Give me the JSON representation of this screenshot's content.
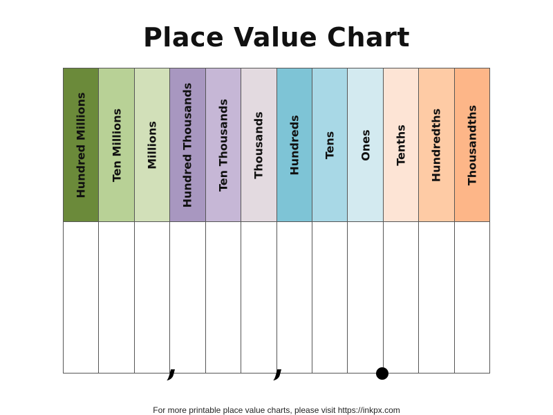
{
  "title": "Place Value Chart",
  "columns": [
    {
      "label": "Hundred Millions",
      "color": "#6b8a3a"
    },
    {
      "label": "Ten Millions",
      "color": "#b8d196"
    },
    {
      "label": "Millions",
      "color": "#d2e0b9"
    },
    {
      "label": "Hundred Thousands",
      "color": "#a897c0"
    },
    {
      "label": "Ten Thousands",
      "color": "#c6b7d6"
    },
    {
      "label": "Thousands",
      "color": "#e3dae0"
    },
    {
      "label": "Hundreds",
      "color": "#7ec4d6"
    },
    {
      "label": "Tens",
      "color": "#a8d8e6"
    },
    {
      "label": "Ones",
      "color": "#d3eaf0"
    },
    {
      "label": "Tenths",
      "color": "#fde4d5"
    },
    {
      "label": "Hundredths",
      "color": "#fecba5"
    },
    {
      "label": "Thousandths",
      "color": "#fdb688"
    }
  ],
  "separators": [
    "comma",
    "comma",
    "decimal-point"
  ],
  "footer": "For more printable place value charts, please visit https://inkpx.com"
}
